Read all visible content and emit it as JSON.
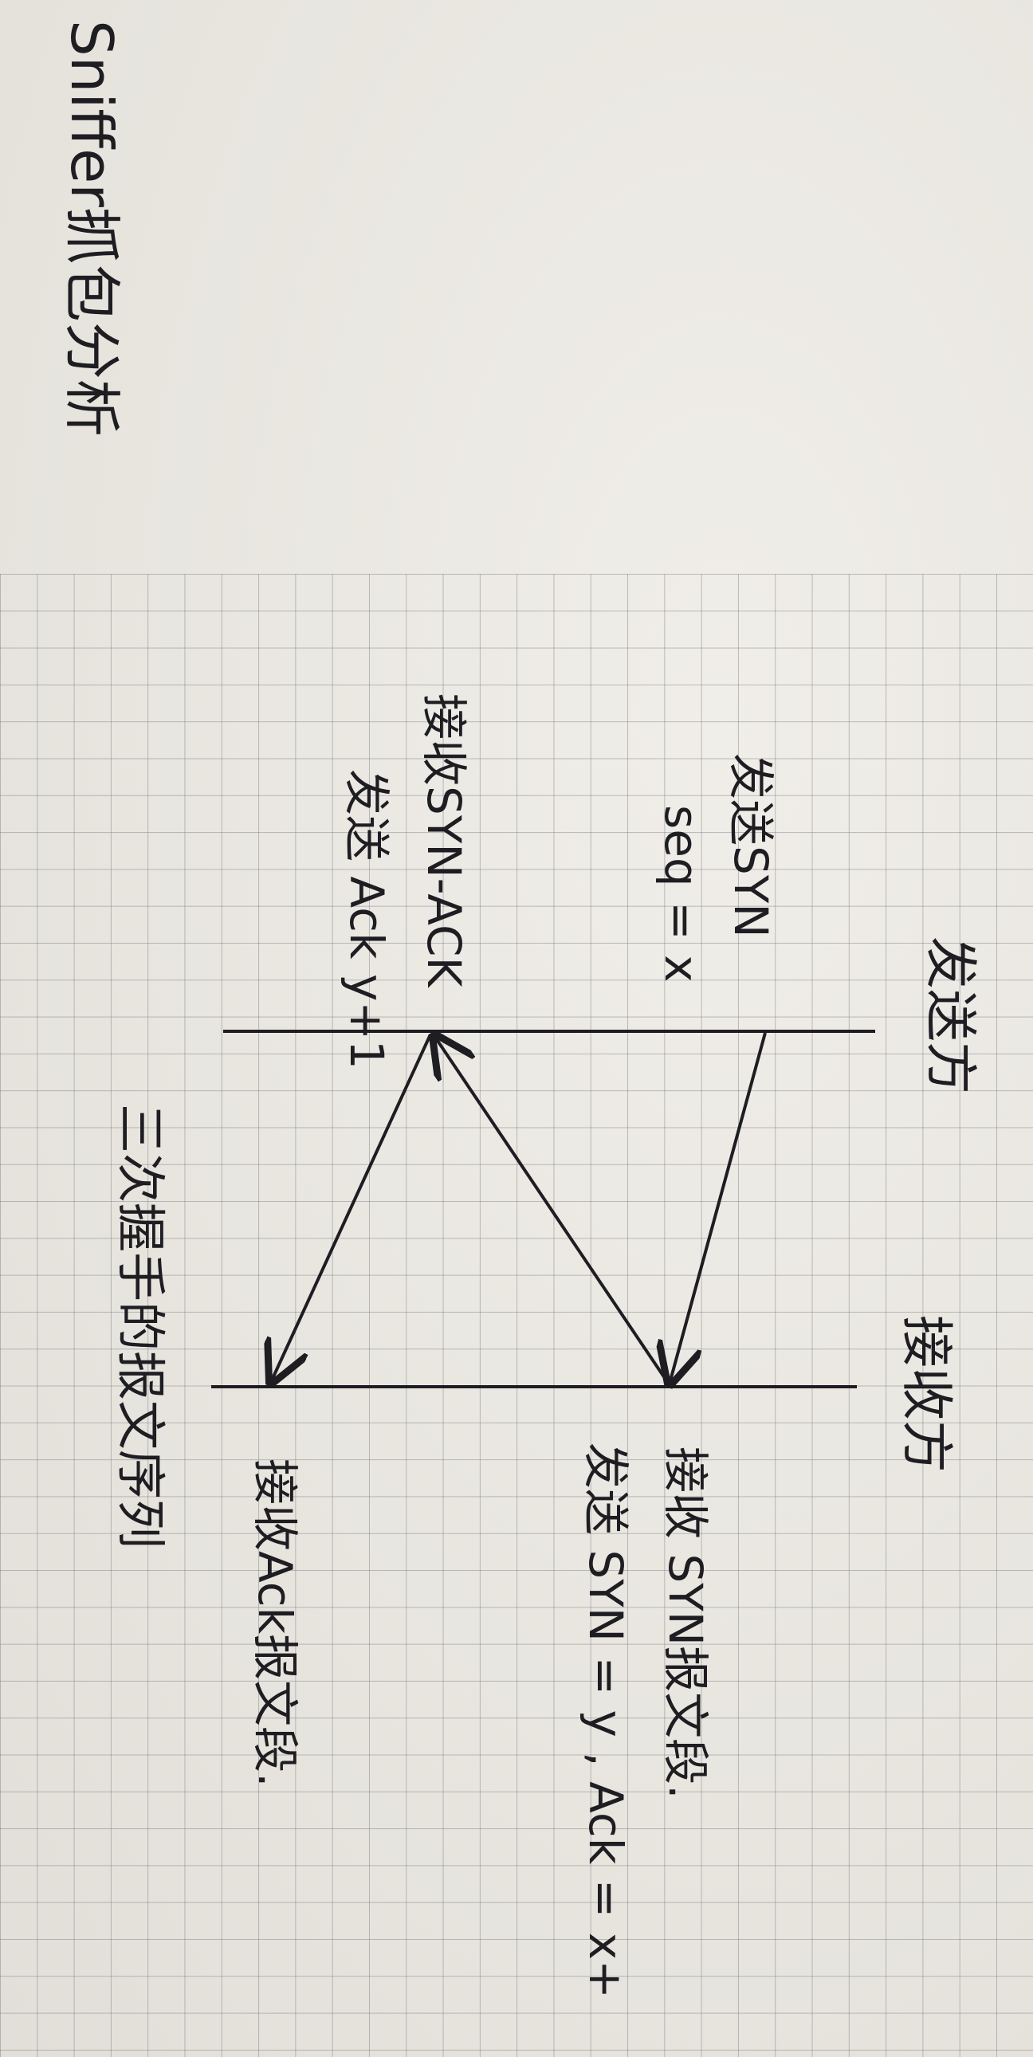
{
  "title": "Sniffer抓包分析",
  "sender": {
    "label": "发送方",
    "note_send_syn": "发送SYN",
    "note_seq": "seq = x",
    "note_recv_syn_ack": "接收SYN-ACK",
    "note_send_ack": "发送 Ack y+1"
  },
  "receiver": {
    "label": "接收方",
    "note_recv_syn": "接收 SYN报文段.",
    "note_send_syn_ack": "发送 SYN = y , Ack = x+",
    "note_recv_ack": "接收Ack报文段."
  },
  "caption": "三次握手的报文序列",
  "colors": {
    "ink": "#1d1d22",
    "paper": "#ebe8e1",
    "grid": "#7d7d82"
  }
}
